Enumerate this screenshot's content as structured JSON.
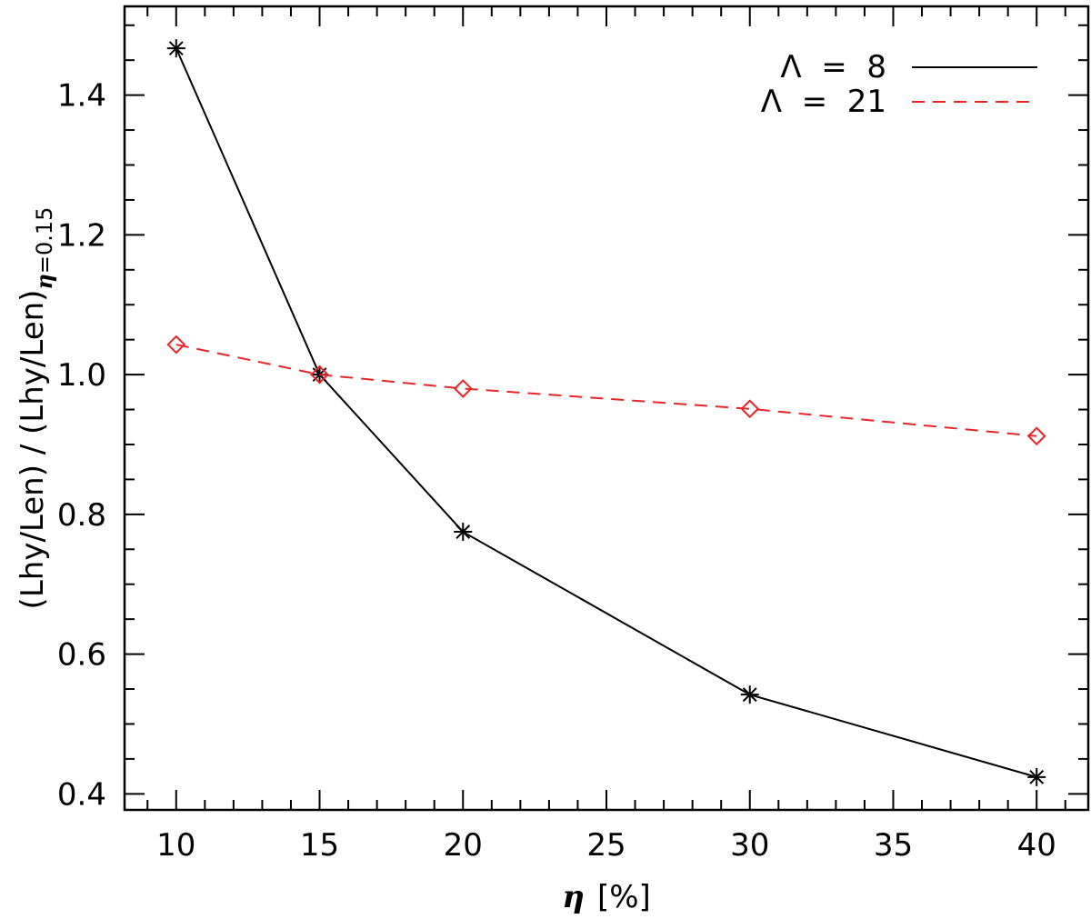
{
  "chart_data": {
    "type": "line",
    "xlabel_symbol": "η",
    "xlabel_unit": "[%]",
    "ylabel_main": "(Lhy/Len) / (Lhy/Len)",
    "ylabel_sub_symbol": "η",
    "ylabel_sub_text": "=0.15",
    "xlim": [
      8.2,
      41.8
    ],
    "ylim": [
      0.377,
      1.527
    ],
    "x_ticks": [
      10,
      15,
      20,
      25,
      30,
      35,
      40
    ],
    "x_tick_labels": [
      "10",
      "15",
      "20",
      "25",
      "30",
      "35",
      "40"
    ],
    "x_minor_step": 1,
    "y_ticks": [
      0.4,
      0.6,
      0.8,
      1.0,
      1.2,
      1.4
    ],
    "y_tick_labels": [
      "0.4",
      "0.6",
      "0.8",
      "1.0",
      "1.2",
      "1.4"
    ],
    "y_minor_step": 0.05,
    "grid": false,
    "legend_position": "top-right",
    "series": [
      {
        "name": "Λ  =  8",
        "color": "#000000",
        "line_style": "solid",
        "marker": "asterisk",
        "x": [
          10,
          15,
          20,
          30,
          40
        ],
        "y": [
          1.467,
          1.0,
          0.775,
          0.542,
          0.424
        ]
      },
      {
        "name": "Λ  =  21",
        "color": "#e8262a",
        "line_style": "dashed",
        "marker": "diamond",
        "x": [
          10,
          15,
          20,
          30,
          40
        ],
        "y": [
          1.043,
          1.0,
          0.98,
          0.951,
          0.912
        ]
      }
    ]
  }
}
